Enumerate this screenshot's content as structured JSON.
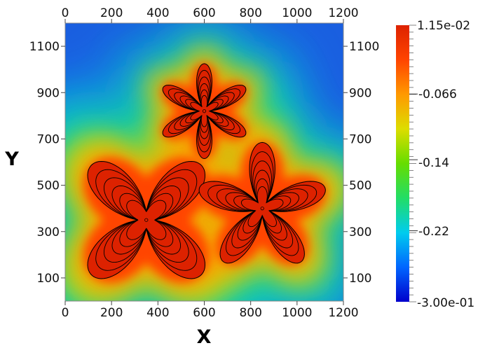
{
  "chart_data": {
    "type": "heatmap",
    "xlabel": "X",
    "ylabel": "Y",
    "xlim": [
      0,
      1200
    ],
    "ylim": [
      0,
      1200
    ],
    "x_ticks": [
      0,
      200,
      400,
      600,
      800,
      1000,
      1200
    ],
    "y_ticks": [
      100,
      300,
      500,
      700,
      900,
      1100
    ],
    "colorbar": {
      "min_label": "-3.00e-01",
      "max_label": "1.15e-02",
      "tick_labels": [
        "-0.066",
        "-0.14",
        "-0.22"
      ],
      "min": -0.3,
      "max": 0.0115,
      "tick_values": [
        -0.066,
        -0.14,
        -0.22
      ],
      "colormap": [
        "#0000cc",
        "#0066ff",
        "#00ccee",
        "#22dd66",
        "#66dd00",
        "#dddd00",
        "#ff9900",
        "#ff4400",
        "#dd2200"
      ]
    },
    "field_background": "#1a5fe0",
    "contour_color": "#000000",
    "regions": [
      {
        "label": "six-petal",
        "center": [
          600,
          820
        ],
        "arms": 6,
        "petal_length": 205,
        "value": 0.0115
      },
      {
        "label": "four-petal",
        "center": [
          350,
          350
        ],
        "arms": 4,
        "petal_length": 335,
        "value": 0.0115
      },
      {
        "label": "five-petal",
        "center": [
          850,
          400
        ],
        "arms": 5,
        "petal_length": 285,
        "value": 0.0115
      }
    ]
  }
}
